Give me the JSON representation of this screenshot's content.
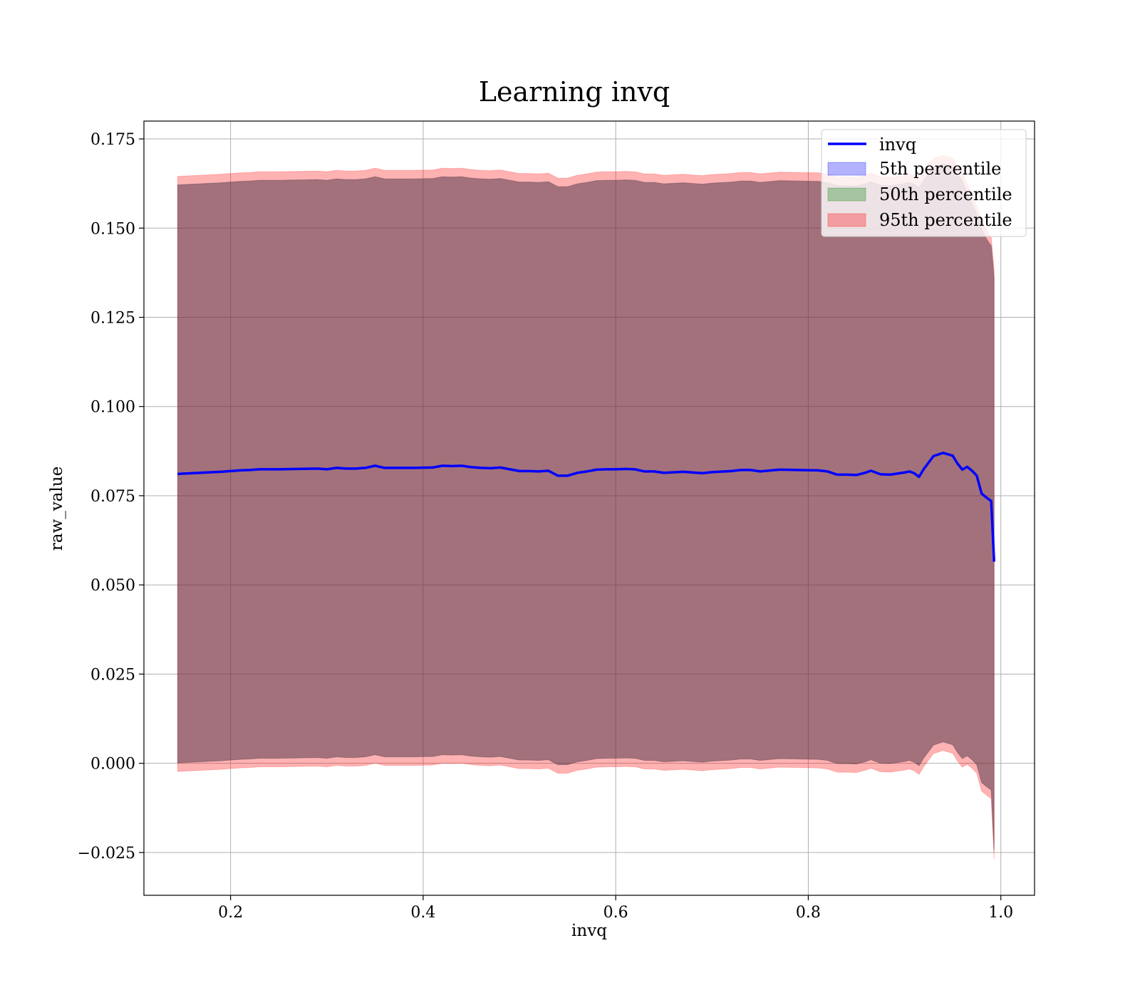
{
  "chart_data": {
    "type": "area",
    "title": "Learning invq",
    "xlabel": "invq",
    "ylabel": "raw_value",
    "xlim": [
      0.11,
      1.035
    ],
    "ylim": [
      -0.037,
      0.18
    ],
    "x_ticks": [
      0.2,
      0.4,
      0.6,
      0.8,
      1.0
    ],
    "x_tick_labels": [
      "0.2",
      "0.4",
      "0.6",
      "0.8",
      "1.0"
    ],
    "y_ticks": [
      -0.025,
      0.0,
      0.025,
      0.05,
      0.075,
      0.1,
      0.125,
      0.15,
      0.175
    ],
    "y_tick_labels": [
      "−0.025",
      "0.000",
      "0.025",
      "0.050",
      "0.075",
      "0.100",
      "0.125",
      "0.150",
      "0.175"
    ],
    "grid": true,
    "legend_position": "top-right",
    "x": [
      0.145,
      0.16,
      0.175,
      0.19,
      0.2,
      0.21,
      0.22,
      0.23,
      0.25,
      0.27,
      0.29,
      0.3,
      0.31,
      0.32,
      0.33,
      0.34,
      0.35,
      0.36,
      0.37,
      0.39,
      0.41,
      0.42,
      0.43,
      0.44,
      0.45,
      0.46,
      0.47,
      0.48,
      0.49,
      0.5,
      0.51,
      0.52,
      0.53,
      0.54,
      0.55,
      0.56,
      0.57,
      0.58,
      0.59,
      0.6,
      0.61,
      0.62,
      0.63,
      0.64,
      0.65,
      0.67,
      0.69,
      0.7,
      0.72,
      0.73,
      0.74,
      0.75,
      0.77,
      0.79,
      0.81,
      0.82,
      0.83,
      0.84,
      0.85,
      0.86,
      0.865,
      0.875,
      0.885,
      0.89,
      0.9,
      0.905,
      0.91,
      0.915,
      0.92,
      0.93,
      0.94,
      0.945,
      0.95,
      0.955,
      0.96,
      0.965,
      0.97,
      0.975,
      0.98,
      0.985,
      0.99,
      0.993
    ],
    "series": [
      {
        "name": "invq",
        "color": "#0000ff",
        "values": [
          0.0811,
          0.0813,
          0.0815,
          0.0817,
          0.0819,
          0.0821,
          0.0822,
          0.0824,
          0.0824,
          0.0825,
          0.0826,
          0.0824,
          0.0828,
          0.0826,
          0.0826,
          0.0828,
          0.0834,
          0.0828,
          0.0828,
          0.0828,
          0.0829,
          0.0834,
          0.0833,
          0.0834,
          0.083,
          0.0828,
          0.0827,
          0.0829,
          0.0824,
          0.0819,
          0.0819,
          0.0818,
          0.082,
          0.0806,
          0.0806,
          0.0814,
          0.0818,
          0.0823,
          0.0824,
          0.0824,
          0.0825,
          0.0824,
          0.0818,
          0.0818,
          0.0814,
          0.0817,
          0.0813,
          0.0816,
          0.0819,
          0.0822,
          0.0822,
          0.0818,
          0.0823,
          0.0822,
          0.0821,
          0.0818,
          0.0809,
          0.0809,
          0.0808,
          0.0815,
          0.082,
          0.081,
          0.0809,
          0.0811,
          0.0815,
          0.0818,
          0.0813,
          0.0803,
          0.0825,
          0.0861,
          0.087,
          0.0866,
          0.0862,
          0.084,
          0.0823,
          0.0831,
          0.082,
          0.0806,
          0.0756,
          0.0745,
          0.0735,
          0.0565
        ]
      }
    ],
    "bands": [
      {
        "name": "5th percentile",
        "color": "#0000ff",
        "opacity": 0.3,
        "lower": [
          0.0001,
          0.0003,
          0.0005,
          0.0007,
          0.0009,
          0.0011,
          0.0012,
          0.0014,
          0.0014,
          0.0015,
          0.0016,
          0.0014,
          0.0018,
          0.0016,
          0.0016,
          0.0018,
          0.0024,
          0.0018,
          0.0018,
          0.0018,
          0.0019,
          0.0024,
          0.0023,
          0.0024,
          0.002,
          0.0018,
          0.0017,
          0.0019,
          0.0014,
          0.0009,
          0.0009,
          0.0008,
          0.001,
          -0.0004,
          -0.0004,
          0.0004,
          0.0008,
          0.0013,
          0.0014,
          0.0014,
          0.0015,
          0.0014,
          0.0008,
          0.0008,
          0.0004,
          0.0007,
          0.0003,
          0.0006,
          0.0009,
          0.0012,
          0.0012,
          0.0008,
          0.0013,
          0.0012,
          0.0011,
          0.0008,
          -0.0001,
          -0.0001,
          -0.0002,
          0.0005,
          0.001,
          0.0,
          -0.0001,
          0.0001,
          0.0005,
          0.0008,
          0.0003,
          -0.0007,
          0.0015,
          0.0051,
          0.006,
          0.0056,
          0.0052,
          0.003,
          0.0013,
          0.0021,
          0.001,
          -0.0004,
          -0.0054,
          -0.0065,
          -0.0075,
          -0.0245
        ],
        "upper": [
          0.1621,
          0.1623,
          0.1625,
          0.1627,
          0.1629,
          0.1631,
          0.1632,
          0.1634,
          0.1634,
          0.1635,
          0.1636,
          0.1634,
          0.1638,
          0.1636,
          0.1636,
          0.1638,
          0.1644,
          0.1638,
          0.1638,
          0.1638,
          0.1639,
          0.1644,
          0.1643,
          0.1644,
          0.164,
          0.1638,
          0.1637,
          0.1639,
          0.1634,
          0.1629,
          0.1629,
          0.1628,
          0.163,
          0.1616,
          0.1616,
          0.1624,
          0.1628,
          0.1633,
          0.1634,
          0.1634,
          0.1635,
          0.1634,
          0.1628,
          0.1628,
          0.1624,
          0.1627,
          0.1623,
          0.1626,
          0.1629,
          0.1632,
          0.1632,
          0.1628,
          0.1633,
          0.1632,
          0.1631,
          0.1628,
          0.1619,
          0.1619,
          0.1618,
          0.1625,
          0.163,
          0.162,
          0.1619,
          0.1621,
          0.1625,
          0.1628,
          0.1623,
          0.1613,
          0.1635,
          0.1671,
          0.168,
          0.1676,
          0.1672,
          0.165,
          0.1633,
          0.16,
          0.157,
          0.154,
          0.15,
          0.147,
          0.145,
          0.136
        ]
      },
      {
        "name": "50th percentile",
        "color": "#008000",
        "opacity": 0.3,
        "lower": [
          0.0001,
          0.0003,
          0.0005,
          0.0007,
          0.0009,
          0.0011,
          0.0012,
          0.0014,
          0.0014,
          0.0015,
          0.0016,
          0.0014,
          0.0018,
          0.0016,
          0.0016,
          0.0018,
          0.0024,
          0.0018,
          0.0018,
          0.0018,
          0.0019,
          0.0024,
          0.0023,
          0.0024,
          0.002,
          0.0018,
          0.0017,
          0.0019,
          0.0014,
          0.0009,
          0.0009,
          0.0008,
          0.001,
          -0.0004,
          -0.0004,
          0.0004,
          0.0008,
          0.0013,
          0.0014,
          0.0014,
          0.0015,
          0.0014,
          0.0008,
          0.0008,
          0.0004,
          0.0007,
          0.0003,
          0.0006,
          0.0009,
          0.0012,
          0.0012,
          0.0008,
          0.0013,
          0.0012,
          0.0011,
          0.0008,
          -0.0001,
          -0.0001,
          -0.0002,
          0.0005,
          0.001,
          0.0,
          -0.0001,
          0.0001,
          0.0005,
          0.0008,
          0.0003,
          -0.0007,
          0.0015,
          0.0051,
          0.006,
          0.0056,
          0.0052,
          0.003,
          0.0013,
          0.0021,
          0.001,
          -0.0004,
          -0.0054,
          -0.0065,
          -0.0075,
          -0.0245
        ],
        "upper": [
          0.1621,
          0.1623,
          0.1625,
          0.1627,
          0.1629,
          0.1631,
          0.1632,
          0.1634,
          0.1634,
          0.1635,
          0.1636,
          0.1634,
          0.1638,
          0.1636,
          0.1636,
          0.1638,
          0.1644,
          0.1638,
          0.1638,
          0.1638,
          0.1639,
          0.1644,
          0.1643,
          0.1644,
          0.164,
          0.1638,
          0.1637,
          0.1639,
          0.1634,
          0.1629,
          0.1629,
          0.1628,
          0.163,
          0.1616,
          0.1616,
          0.1624,
          0.1628,
          0.1633,
          0.1634,
          0.1634,
          0.1635,
          0.1634,
          0.1628,
          0.1628,
          0.1624,
          0.1627,
          0.1623,
          0.1626,
          0.1629,
          0.1632,
          0.1632,
          0.1628,
          0.1633,
          0.1632,
          0.1631,
          0.1628,
          0.1619,
          0.1619,
          0.1618,
          0.1625,
          0.163,
          0.162,
          0.1619,
          0.1621,
          0.1625,
          0.1628,
          0.1623,
          0.1613,
          0.1635,
          0.1671,
          0.168,
          0.1676,
          0.1672,
          0.165,
          0.1633,
          0.16,
          0.157,
          0.154,
          0.15,
          0.147,
          0.145,
          0.136
        ]
      },
      {
        "name": "95th percentile",
        "color": "#ff0000",
        "opacity": 0.3,
        "lower": [
          -0.0023,
          -0.0021,
          -0.0019,
          -0.0017,
          -0.0015,
          -0.0013,
          -0.0012,
          -0.001,
          -0.001,
          -0.0009,
          -0.0008,
          -0.001,
          -0.0006,
          -0.0008,
          -0.0008,
          -0.0006,
          0.0,
          -0.0006,
          -0.0006,
          -0.0006,
          -0.0005,
          0.0,
          -0.0001,
          0.0,
          -0.0004,
          -0.0006,
          -0.0007,
          -0.0005,
          -0.001,
          -0.0015,
          -0.0015,
          -0.0016,
          -0.0014,
          -0.0028,
          -0.0028,
          -0.002,
          -0.0016,
          -0.0011,
          -0.001,
          -0.001,
          -0.0009,
          -0.001,
          -0.0016,
          -0.0016,
          -0.002,
          -0.0017,
          -0.0021,
          -0.0018,
          -0.0015,
          -0.0012,
          -0.0012,
          -0.0016,
          -0.0011,
          -0.0012,
          -0.0013,
          -0.0016,
          -0.0025,
          -0.0025,
          -0.0026,
          -0.0019,
          -0.0014,
          -0.0024,
          -0.0025,
          -0.0023,
          -0.0019,
          -0.0016,
          -0.0021,
          -0.0031,
          -0.0009,
          0.0027,
          0.0036,
          0.0032,
          0.0028,
          0.0006,
          -0.0011,
          -0.0003,
          -0.0014,
          -0.0028,
          -0.0078,
          -0.0089,
          -0.0099,
          -0.0269
        ],
        "upper": [
          0.1645,
          0.1647,
          0.1649,
          0.1651,
          0.1653,
          0.1655,
          0.1656,
          0.1658,
          0.1658,
          0.1659,
          0.166,
          0.1658,
          0.1662,
          0.166,
          0.166,
          0.1662,
          0.1668,
          0.1662,
          0.1662,
          0.1662,
          0.1663,
          0.1668,
          0.1667,
          0.1668,
          0.1664,
          0.1662,
          0.1661,
          0.1663,
          0.1658,
          0.1653,
          0.1653,
          0.1652,
          0.1654,
          0.164,
          0.164,
          0.1648,
          0.1652,
          0.1657,
          0.1658,
          0.1658,
          0.1659,
          0.1658,
          0.1652,
          0.1652,
          0.1648,
          0.1651,
          0.1647,
          0.165,
          0.1653,
          0.1656,
          0.1656,
          0.1652,
          0.1657,
          0.1656,
          0.1655,
          0.1652,
          0.1643,
          0.1643,
          0.1642,
          0.1649,
          0.1654,
          0.1644,
          0.1643,
          0.1645,
          0.1649,
          0.1652,
          0.1647,
          0.1637,
          0.1659,
          0.1695,
          0.1704,
          0.17,
          0.1696,
          0.1674,
          0.1657,
          0.1624,
          0.1594,
          0.1564,
          0.1524,
          0.1494,
          0.1474,
          0.1384
        ]
      }
    ]
  }
}
